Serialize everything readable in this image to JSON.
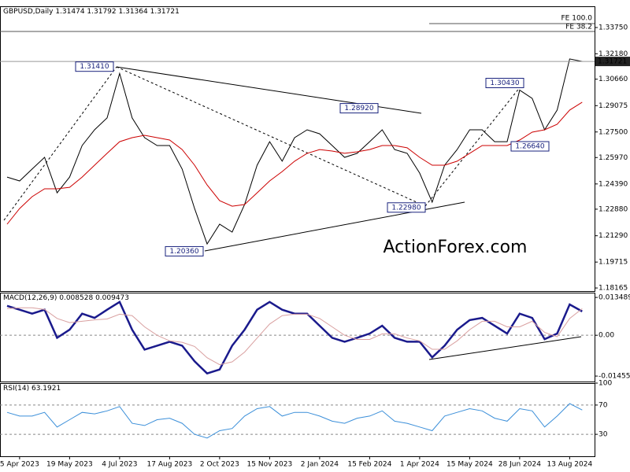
{
  "chart_data": [
    {
      "type": "line",
      "title": "GBPUSD,Daily",
      "header_values": [
        1.31474,
        1.31792,
        1.31364,
        1.31721
      ],
      "categories": [
        null,
        "5 Apr 2023",
        null,
        null,
        null,
        "19 May 2023",
        null,
        null,
        null,
        "4 Jul 2023",
        null,
        null,
        null,
        "17 Aug 2023",
        null,
        null,
        null,
        "2 Oct 2023",
        null,
        null,
        null,
        "15 Nov 2023",
        null,
        null,
        null,
        "2 Jan 2024",
        null,
        null,
        null,
        "15 Feb 2024",
        null,
        null,
        null,
        "1 Apr 2024",
        null,
        null,
        null,
        "15 May 2024",
        null,
        null,
        null,
        "28 Jun 2024",
        null,
        null,
        null,
        "13 Aug 2024",
        null
      ],
      "series": [
        {
          "name": "Close",
          "color": "#000000",
          "values": [
            1.248,
            1.2457,
            1.2528,
            1.2598,
            1.2386,
            1.248,
            1.2669,
            1.2763,
            1.2834,
            1.31,
            1.2834,
            1.2716,
            1.2669,
            1.2669,
            1.2528,
            1.2292,
            1.208,
            1.2198,
            1.2151,
            1.2316,
            1.2551,
            1.2692,
            1.2575,
            1.2716,
            1.2763,
            1.2739,
            1.2669,
            1.2598,
            1.2622,
            1.2692,
            1.2763,
            1.2645,
            1.2622,
            1.2504,
            1.233,
            1.2551,
            1.2645,
            1.2763,
            1.2763,
            1.2692,
            1.2692,
            1.3,
            1.2951,
            1.2763,
            1.2881,
            1.3187,
            1.3172
          ]
        },
        {
          "name": "MA",
          "color": "#cc0000",
          "values": [
            1.2198,
            1.2292,
            1.2363,
            1.241,
            1.241,
            1.2419,
            1.248,
            1.2551,
            1.2622,
            1.2692,
            1.2716,
            1.273,
            1.2716,
            1.2702,
            1.2645,
            1.2551,
            1.2433,
            1.2339,
            1.2306,
            1.2316,
            1.2386,
            1.2457,
            1.2513,
            1.2575,
            1.2622,
            1.2645,
            1.2636,
            1.2622,
            1.2631,
            1.2645,
            1.2669,
            1.2669,
            1.2655,
            1.2598,
            1.2551,
            1.2551,
            1.2575,
            1.2622,
            1.2669,
            1.2669,
            1.2669,
            1.2702,
            1.2749,
            1.2763,
            1.2796,
            1.2881,
            1.2928
          ]
        }
      ],
      "ylim": [
        1.1798,
        1.3502
      ],
      "yticks": [
        {
          "value": 1.3375,
          "label": "1.33750"
        },
        {
          "value": 1.3218,
          "label": "1.32180"
        },
        {
          "value": 1.3066,
          "label": "1.30660"
        },
        1.29075,
        {
          "value": 1.275,
          "label": "1.27500"
        },
        {
          "value": 1.2597,
          "label": "1.25970"
        },
        {
          "value": 1.2439,
          "label": "1.24390"
        },
        {
          "value": 1.2288,
          "label": "1.22880"
        },
        {
          "value": 1.2129,
          "label": "1.21290"
        },
        1.19715,
        1.18165
      ],
      "grid": false,
      "last_price": 1.31721,
      "annotations": [
        {
          "value": 1.3141,
          "label": "1.31410"
        },
        {
          "value": 1.2892,
          "label": "1.28920"
        },
        {
          "value": 1.2036,
          "label": "1.20360"
        },
        {
          "value": 1.2298,
          "label": "1.22980"
        },
        {
          "value": 1.3043,
          "label": "1.30430"
        },
        {
          "value": 1.2664,
          "label": "1.26640"
        }
      ],
      "fe_labels": [
        "FE 100.0",
        "FE 38.2"
      ],
      "watermark": "ActionForex.com"
    },
    {
      "type": "line",
      "title": "MACD(12,26,9)",
      "header_values": [
        0.008528,
        0.009473
      ],
      "series": [
        {
          "name": "MACD",
          "color": "#1a1a8c",
          "values": [
            0.0105,
            0.0091,
            0.0077,
            0.0091,
            -0.0009,
            0.002,
            0.0077,
            0.0062,
            0.0091,
            0.0119,
            0.002,
            -0.0051,
            -0.0037,
            -0.0023,
            -0.0037,
            -0.0093,
            -0.0136,
            -0.0122,
            -0.0037,
            0.002,
            0.0091,
            0.0119,
            0.0091,
            0.0077,
            0.0077,
            0.0034,
            -0.0009,
            -0.0023,
            -0.0009,
            0.0006,
            0.0034,
            -0.0009,
            -0.0023,
            -0.0023,
            -0.0079,
            -0.0037,
            0.002,
            0.0054,
            0.0062,
            0.0034,
            0.0006,
            0.0077,
            0.0062,
            -0.0014,
            0.0006,
            0.011,
            0.0085
          ]
        },
        {
          "name": "Signal",
          "color": "#d9a0a0",
          "values": [
            0.0095,
            0.0098,
            0.0098,
            0.0092,
            0.006,
            0.0045,
            0.005,
            0.0055,
            0.0058,
            0.0075,
            0.007,
            0.003,
            0.0,
            -0.002,
            -0.0025,
            -0.004,
            -0.008,
            -0.0105,
            -0.0095,
            -0.006,
            -0.001,
            0.004,
            0.007,
            0.0075,
            0.0075,
            0.006,
            0.003,
            0.0,
            -0.0015,
            -0.0015,
            0.0005,
            0.0005,
            -0.001,
            -0.002,
            -0.005,
            -0.005,
            -0.002,
            0.002,
            0.005,
            0.005,
            0.003,
            0.003,
            0.005,
            0.001,
            -0.0005,
            0.006,
            0.009473
          ]
        }
      ],
      "ylim": [
        -0.0165,
        0.0152
      ],
      "yticks": [
        0.013489,
        {
          "value": 0,
          "label": "0.00"
        },
        -0.014554
      ],
      "grid": true
    },
    {
      "type": "line",
      "title": "RSI(14)",
      "header_values": [
        63.1921
      ],
      "series": [
        {
          "name": "RSI",
          "color": "#3b8fd9",
          "values": [
            60,
            55,
            55,
            60,
            40,
            50,
            60,
            58,
            62,
            68,
            45,
            42,
            50,
            52,
            45,
            30,
            25,
            35,
            38,
            55,
            65,
            68,
            55,
            60,
            60,
            55,
            48,
            45,
            52,
            55,
            62,
            48,
            45,
            40,
            35,
            55,
            60,
            65,
            62,
            52,
            48,
            65,
            62,
            40,
            55,
            72,
            63.1921
          ]
        }
      ],
      "ylim": [
        0,
        100
      ],
      "yticks": [
        100,
        70,
        30
      ],
      "grid": true
    }
  ]
}
